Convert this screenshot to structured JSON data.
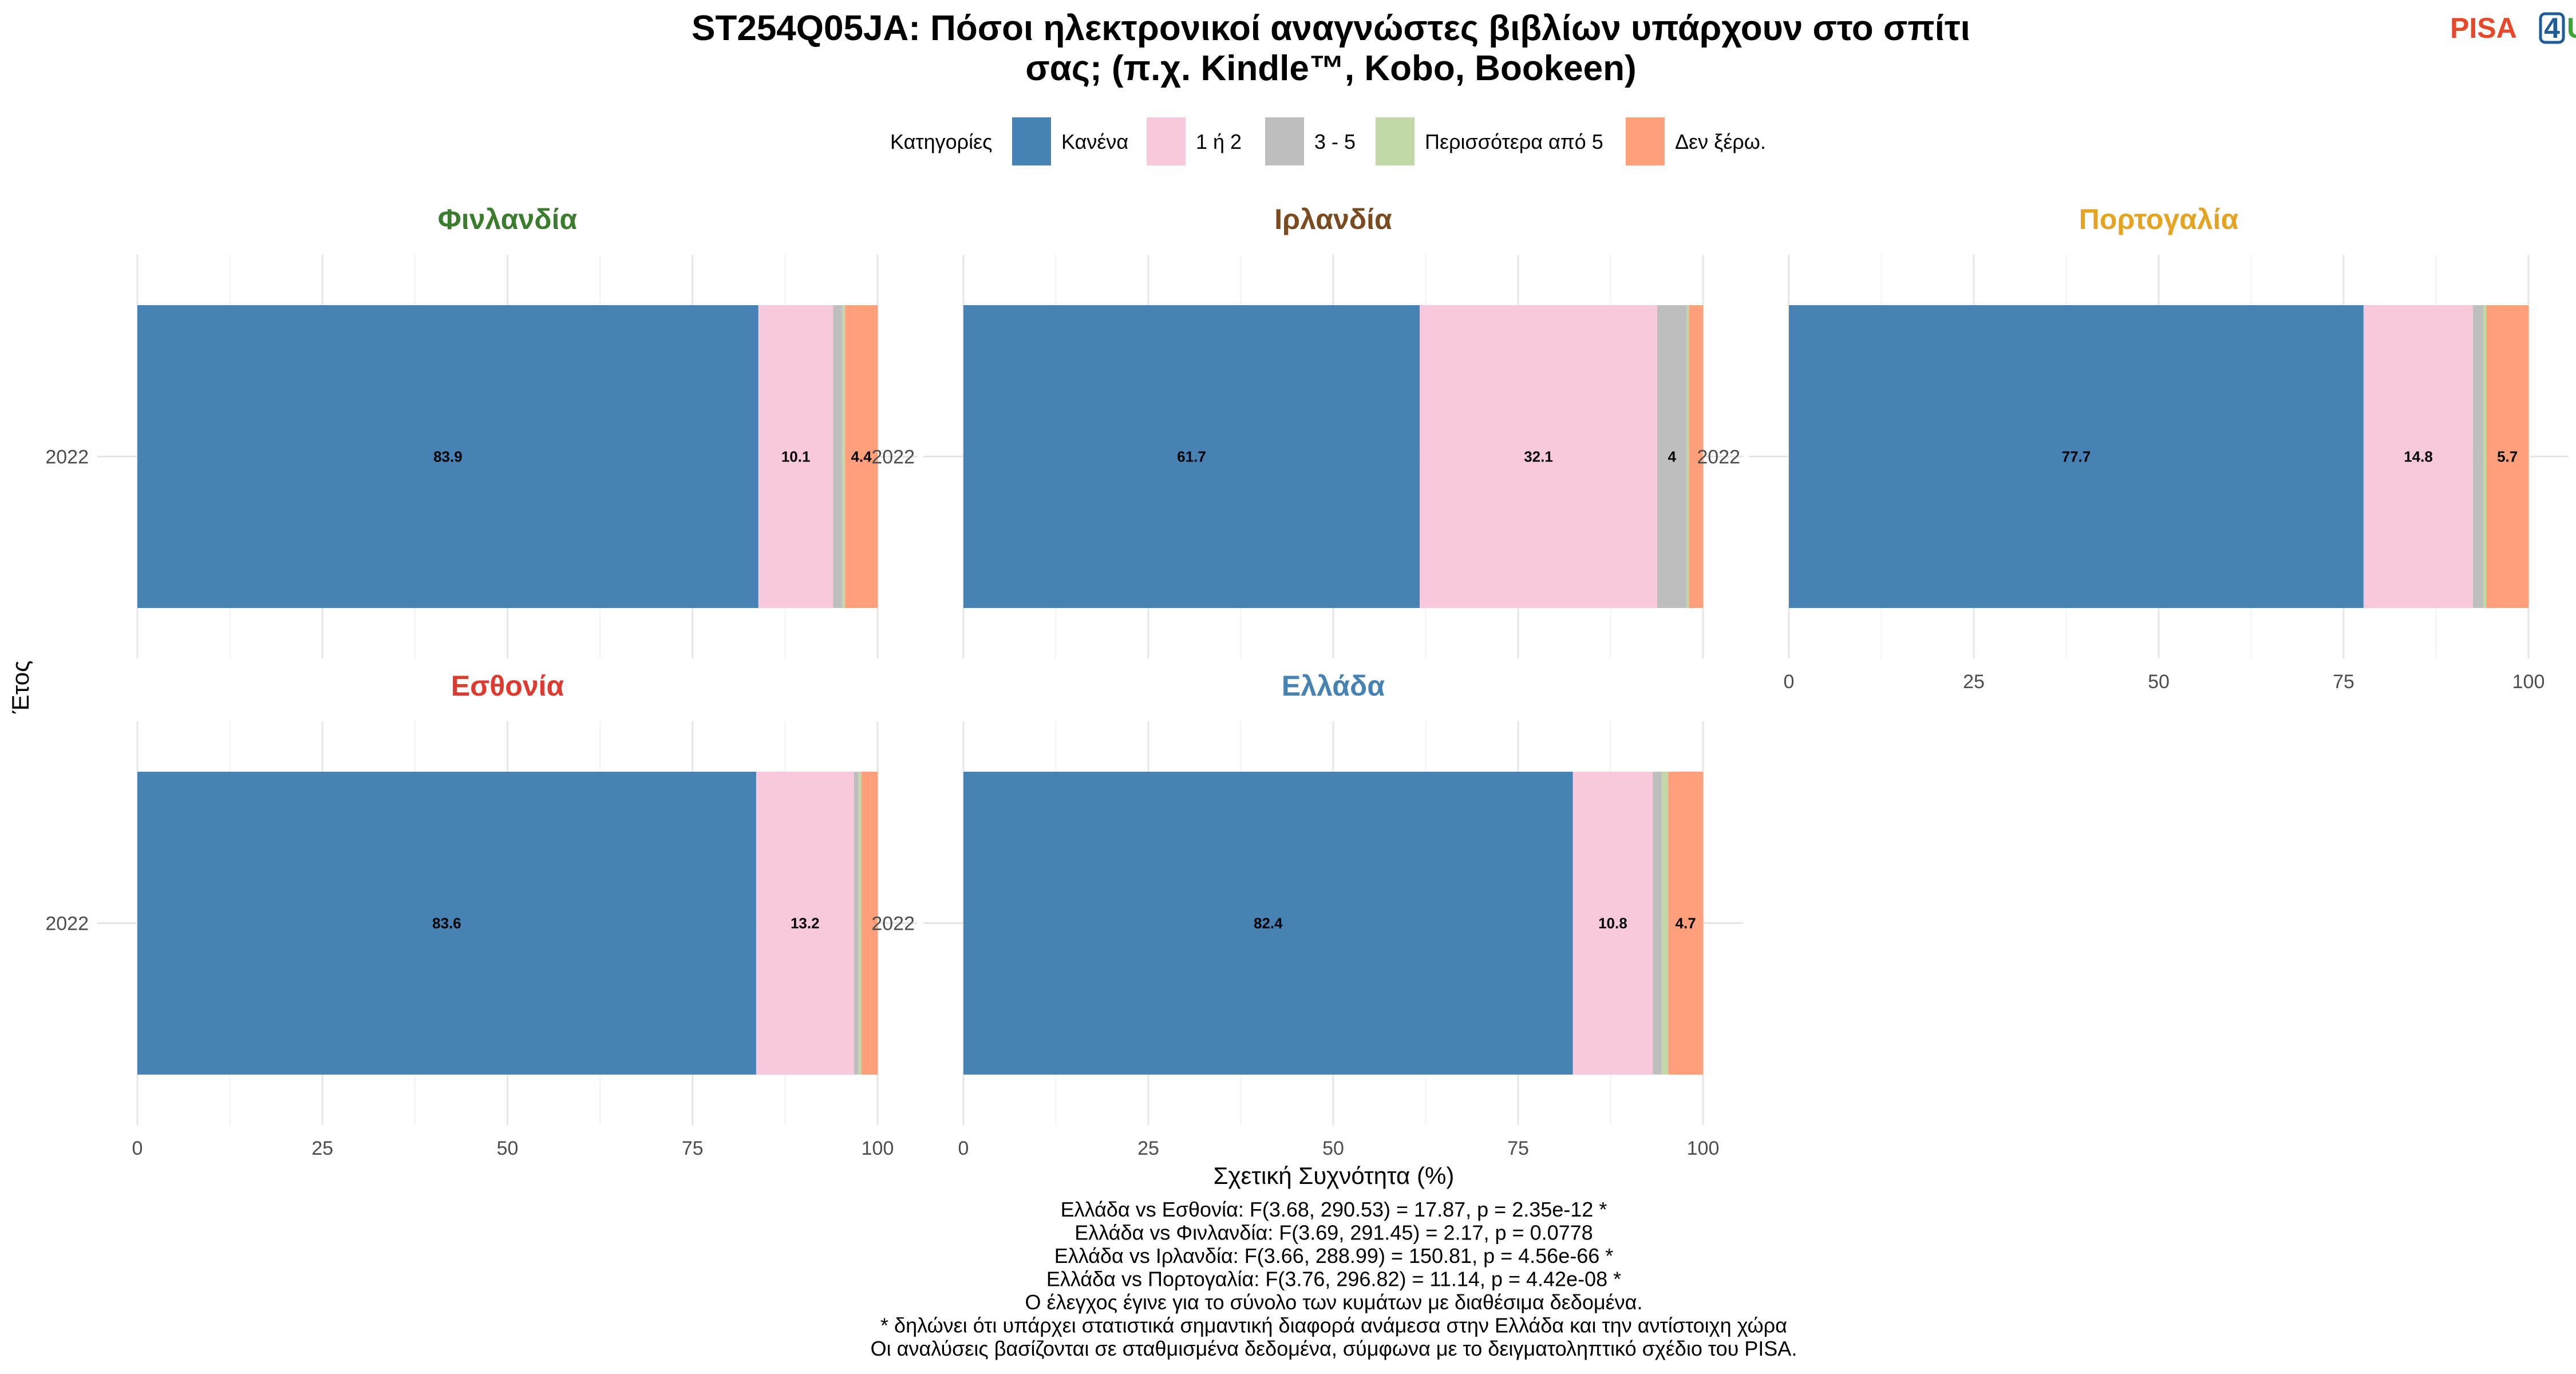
{
  "title_lines": [
    "ST254Q05JA: Πόσοι ηλεκτρονικοί αναγνώστες βιβλίων υπάρχουν στο σπίτι",
    "σας; (π.χ. Kindle™, Kobo, Bookeen)"
  ],
  "logo": {
    "pisa": "PISA",
    "four": "4",
    "u": "U",
    "colors": {
      "pisa": "#e8472a",
      "four": "#1f5c99",
      "u": "#3aa435"
    }
  },
  "legend": {
    "title": "Κατηγορίες"
  },
  "categories": [
    {
      "label": "Κανένα",
      "color": "#4682b4"
    },
    {
      "label": "1 ή 2",
      "color": "#f8c8dc"
    },
    {
      "label": "3 - 5",
      "color": "#bebebe"
    },
    {
      "label": "Περισσότερα από 5",
      "color": "#c1d9a8"
    },
    {
      "label": "Δεν ξέρω.",
      "color": "#ffa07a"
    }
  ],
  "chart_data": {
    "type": "bar",
    "orientation": "horizontal",
    "stacked": true,
    "xlabel": "Σχετική Συχνότητα (%)",
    "ylabel": "Έτος",
    "xlim": [
      0,
      100
    ],
    "xticks": [
      0,
      25,
      50,
      75,
      100
    ],
    "grid": true,
    "legend_position": "top",
    "panels": [
      {
        "name": "Φινλανδία",
        "color": "#3a7d2c",
        "year": "2022",
        "values": [
          83.9,
          10.1,
          1.2,
          0.4,
          4.4
        ]
      },
      {
        "name": "Ιρλανδία",
        "color": "#7b4a1e",
        "year": "2022",
        "values": [
          61.7,
          32.1,
          4.0,
          0.3,
          1.9
        ]
      },
      {
        "name": "Πορτογαλία",
        "color": "#e5a320",
        "year": "2022",
        "values": [
          77.7,
          14.8,
          1.4,
          0.4,
          5.7
        ]
      },
      {
        "name": "Εσθονία",
        "color": "#e03a2f",
        "year": "2022",
        "values": [
          83.6,
          13.2,
          0.6,
          0.4,
          2.2
        ]
      },
      {
        "name": "Ελλάδα",
        "color": "#4682b4",
        "year": "2022",
        "values": [
          82.4,
          10.8,
          1.2,
          0.9,
          4.7
        ]
      }
    ],
    "labeled_values": [
      [
        "83.9",
        "10.1",
        "",
        "",
        "4.4"
      ],
      [
        "61.7",
        "32.1",
        "4",
        "",
        ""
      ],
      [
        "77.7",
        "14.8",
        "",
        "",
        "5.7"
      ],
      [
        "83.6",
        "13.2",
        "",
        "",
        ""
      ],
      [
        "82.4",
        "10.8",
        "",
        "",
        "4.7"
      ]
    ]
  },
  "footnotes": [
    "Ελλάδα vs Εσθονία: F(3.68, 290.53) = 17.87, p = 2.35e-12 *",
    "Ελλάδα vs Φινλανδία: F(3.69, 291.45) = 2.17, p = 0.0778",
    "Ελλάδα vs Ιρλανδία: F(3.66, 288.99) = 150.81, p = 4.56e-66 *",
    "Ελλάδα vs Πορτογαλία: F(3.76, 296.82) = 11.14, p = 4.42e-08 *",
    "Ο έλεγχος έγινε για το σύνολο των κυμάτων με διαθέσιμα δεδομένα.",
    "* δηλώνει ότι υπάρχει στατιστικά σημαντική διαφορά ανάμεσα στην Ελλάδα και την αντίστοιχη χώρα",
    "Οι αναλύσεις βασίζονται σε σταθμισμένα δεδομένα, σύμφωνα με το δειγματοληπτικό σχέδιο του PISA."
  ]
}
